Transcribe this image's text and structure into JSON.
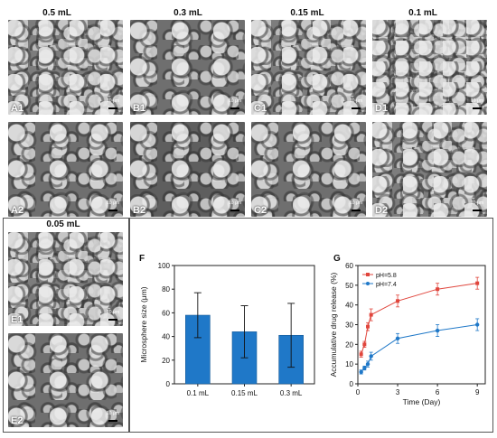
{
  "column_titles": [
    "0.5 mL",
    "0.3 mL",
    "0.15 mL",
    "0.1 mL",
    "0.05 mL"
  ],
  "panel_labels": [
    "A1",
    "B1",
    "C1",
    "D1",
    "A2",
    "B2",
    "C2",
    "D2",
    "E1",
    "E2"
  ],
  "figure_letters": {
    "f": "F",
    "g": "G"
  },
  "chart_data": [
    {
      "type": "bar",
      "panel": "F",
      "categories": [
        "0.1 mL",
        "0.15 mL",
        "0.3 mL"
      ],
      "values": [
        58,
        44,
        41
      ],
      "errors": [
        19,
        22,
        27
      ],
      "xlabel": "",
      "ylabel": "Microsphere size (μm)",
      "ylim": [
        0,
        100
      ],
      "yticks": [
        "0",
        "20",
        "40",
        "60",
        "80",
        "100"
      ],
      "color": "#1f78c8"
    },
    {
      "type": "line",
      "panel": "G",
      "xlabel": "Time (Day)",
      "ylabel": "Accumulative drug release (%)",
      "xlim": [
        0,
        9.6
      ],
      "ylim": [
        0,
        60
      ],
      "xticks": [
        "0",
        "3",
        "6",
        "9"
      ],
      "yticks": [
        "0",
        "10",
        "20",
        "30",
        "40",
        "50",
        "60"
      ],
      "legend_position": "top-left",
      "series": [
        {
          "name": "pH=5.8",
          "color": "#e0453c",
          "marker": "square",
          "x": [
            0.25,
            0.5,
            0.75,
            1,
            3,
            6,
            9
          ],
          "y": [
            15,
            20,
            29,
            35,
            42,
            48,
            51
          ],
          "err": [
            1.5,
            1.5,
            2,
            3,
            3,
            3,
            3
          ]
        },
        {
          "name": "pH=7.4",
          "color": "#1f78c8",
          "marker": "circle",
          "x": [
            0.25,
            0.5,
            0.75,
            1,
            3,
            6,
            9
          ],
          "y": [
            6,
            8,
            10,
            14,
            23,
            27,
            30
          ],
          "err": [
            1,
            1,
            1.5,
            2,
            2.5,
            3,
            3
          ]
        }
      ]
    }
  ]
}
